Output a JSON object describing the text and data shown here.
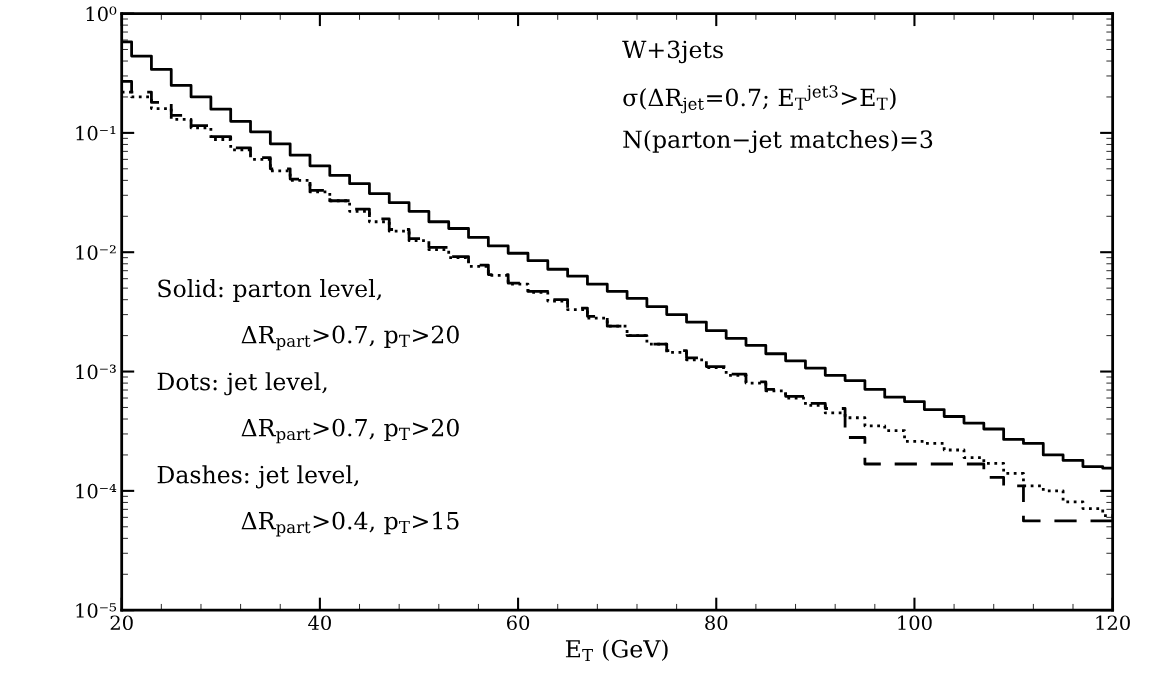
{
  "chart_data": {
    "type": "step",
    "xlabel": "E$_{T}$ (GeV)",
    "x": [
      20,
      22,
      24,
      26,
      28,
      30,
      32,
      34,
      36,
      38,
      40,
      42,
      44,
      46,
      48,
      50,
      52,
      54,
      56,
      58,
      60,
      62,
      64,
      66,
      68,
      70,
      72,
      74,
      76,
      78,
      80,
      82,
      84,
      86,
      88,
      90,
      92,
      94,
      96,
      98,
      100,
      102,
      104,
      106,
      108,
      110,
      112,
      114,
      116,
      118,
      120
    ],
    "series": [
      {
        "color": "#000000",
        "line_style": "solid",
        "values": [
          0.58,
          0.44,
          0.34,
          0.25,
          0.2,
          0.158,
          0.125,
          0.102,
          0.081,
          0.065,
          0.053,
          0.044,
          0.0375,
          0.031,
          0.026,
          0.022,
          0.018,
          0.0158,
          0.0133,
          0.0113,
          0.0098,
          0.0085,
          0.0072,
          0.0063,
          0.0054,
          0.0047,
          0.0041,
          0.0035,
          0.003,
          0.0026,
          0.0022,
          0.0019,
          0.00166,
          0.00141,
          0.00123,
          0.00107,
          0.00093,
          0.00084,
          0.00071,
          0.00061,
          0.00056,
          0.00048,
          0.00042,
          0.00037,
          0.00033,
          0.00027,
          0.00025,
          0.0002,
          0.00018,
          0.00016,
          0.000155
        ]
      },
      {
        "color": "#000000",
        "line_style": "dotted",
        "values": [
          0.22,
          0.2,
          0.16,
          0.13,
          0.11,
          0.088,
          0.072,
          0.06,
          0.048,
          0.04,
          0.032,
          0.027,
          0.022,
          0.018,
          0.015,
          0.0125,
          0.0105,
          0.009,
          0.0076,
          0.0064,
          0.0054,
          0.0046,
          0.0039,
          0.0033,
          0.0028,
          0.0024,
          0.002,
          0.0017,
          0.00145,
          0.00125,
          0.00108,
          0.00093,
          0.0008,
          0.00069,
          0.0006,
          0.00052,
          0.00045,
          0.00041,
          0.00035,
          0.00032,
          0.00026,
          0.00025,
          0.00022,
          0.00019,
          0.00017,
          0.00014,
          0.00011,
          0.0001,
          8.1e-05,
          7.1e-05,
          6.2e-05
        ]
      },
      {
        "color": "#000000",
        "line_style": "dashed",
        "values": [
          0.27,
          0.22,
          0.18,
          0.14,
          0.115,
          0.093,
          0.075,
          0.062,
          0.05,
          0.041,
          0.033,
          0.027,
          0.023,
          0.019,
          0.0155,
          0.013,
          0.011,
          0.0092,
          0.0078,
          0.0065,
          0.0055,
          0.0047,
          0.004,
          0.0034,
          0.0029,
          0.0024,
          0.002,
          0.0017,
          0.0015,
          0.0013,
          0.0011,
          0.00095,
          0.00082,
          0.00071,
          0.00062,
          0.00054,
          0.00049,
          0.00028,
          0.000168,
          0.000168,
          0.000168,
          0.000168,
          0.000168,
          0.000168,
          0.00013,
          0.00011,
          5.6e-05,
          5.6e-05,
          5.6e-05,
          5.6e-05,
          5.6e-05
        ]
      }
    ],
    "log": "y",
    "xlim": [
      20,
      120
    ],
    "xticks": [
      20,
      40,
      60,
      80,
      100,
      120
    ],
    "ylim": [
      1e-05,
      1
    ],
    "yticks": [
      {
        "value": 1e-05,
        "label": "10⁻⁵"
      },
      {
        "value": 0.0001,
        "label": "10⁻⁴"
      },
      {
        "value": 0.001,
        "label": "10⁻³"
      },
      {
        "value": 0.01,
        "label": "10⁻²"
      },
      {
        "value": 0.1,
        "label": "10⁻¹"
      },
      {
        "value": 1,
        "label": "10⁰"
      }
    ],
    "grid": false,
    "annotations": [
      "W+3jets",
      "σ(ΔR$_{jet}$=0.7; E$_{T}$$^{jet3}$>E$_{T}$)",
      "N(parton−jet matches)=3",
      "Solid: parton level,",
      "ΔR$_{part}$>0.7, p$_{T}$>20",
      "Dots: jet level,",
      "ΔR$_{part}$>0.7, p$_{T}$>20",
      "Dashes: jet level,",
      "ΔR$_{part}$>0.4, p$_{T}$>15"
    ]
  }
}
